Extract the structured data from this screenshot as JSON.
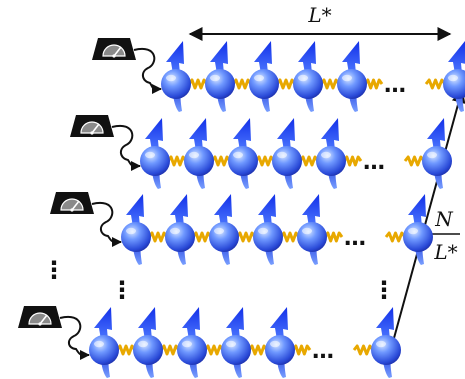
{
  "labels": {
    "top": "L*",
    "ratio_numerator": "N",
    "ratio_denominator": "L*"
  },
  "ellipsis": "…",
  "vertical_ellipsis": "⋮",
  "icons": {
    "meter": "pressure-gauge-icon",
    "spin": "spin-particle-icon",
    "coupling": "spring-coupling-icon"
  },
  "colors": {
    "particle_light": "#a8c8ff",
    "particle_mid": "#3a6df0",
    "particle_dark": "#1a2fb0",
    "arrow_tip": "#1b3df5",
    "spring": "#e8a800",
    "meter_body": "#111111",
    "meter_face": "#8a8a8a"
  }
}
